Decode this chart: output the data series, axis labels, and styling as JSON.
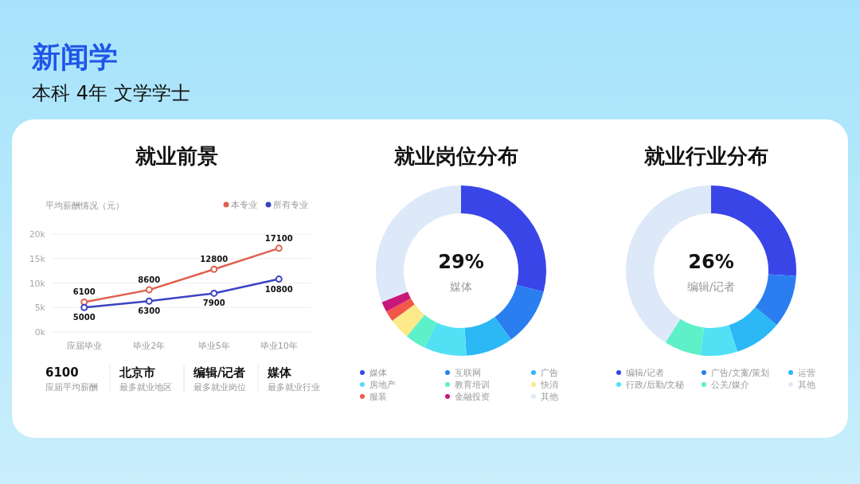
{
  "chart_data": [
    {
      "type": "other",
      "title": "新闻学",
      "subtitle": "本科 4年 文学学士"
    },
    {
      "type": "line",
      "title": "就业前景",
      "ylabel": "平均薪酬情况（元）",
      "categories": [
        "应届毕业",
        "毕业2年",
        "毕业5年",
        "毕业10年"
      ],
      "series": [
        {
          "name": "本专业",
          "color": "#e0604f",
          "values": [
            6100,
            8600,
            12800,
            17100
          ]
        },
        {
          "name": "所有专业",
          "color": "#3a44c4",
          "values": [
            5000,
            6300,
            7900,
            10800
          ]
        }
      ],
      "ylim": [
        0,
        20000
      ],
      "yticks": [
        {
          "value": 0,
          "label": "0k"
        },
        {
          "value": 5000,
          "label": "5k"
        },
        {
          "value": 10000,
          "label": "10k"
        },
        {
          "value": 15000,
          "label": "15k"
        },
        {
          "value": 20000,
          "label": "20k"
        }
      ],
      "grid": "y",
      "legend": "top right",
      "marker": "circle",
      "data_labels": true
    },
    {
      "type": "other",
      "annotations": [
        "6100",
        "应届平均薪酬",
        "北京市",
        "最多就业地区",
        "编辑/记者",
        "最多就业岗位",
        "媒体",
        "最多就业行业"
      ]
    },
    {
      "type": "donut",
      "title": "就业岗位分布",
      "categories": [
        "媒体",
        "互联网",
        "广告",
        "房地产",
        "教育培训",
        "快消",
        "服装",
        "金融投资",
        "其他"
      ],
      "values": [
        29,
        11,
        9,
        8,
        4,
        4,
        2,
        2,
        31
      ],
      "colors": [
        "#3a45e8",
        "#2a7ef0",
        "#2bb8f5",
        "#52e0f5",
        "#5ef0c8",
        "#fce98a",
        "#f2574a",
        "#c8177a",
        "#dde8f8"
      ],
      "legend": "bottom",
      "annotations": [
        "29%",
        "媒体"
      ]
    },
    {
      "type": "donut",
      "title": "就业行业分布",
      "categories": [
        "编辑/记者",
        "广告/文案/策划",
        "运营",
        "行政/后勤/文秘",
        "公关/媒介",
        "其他"
      ],
      "values": [
        26,
        10,
        9,
        7,
        7,
        41
      ],
      "colors": [
        "#3a45e8",
        "#2a7ef0",
        "#2bb8f5",
        "#52e0f5",
        "#5ef0c8",
        "#dde8f8"
      ],
      "legend": "bottom",
      "annotations": [
        "26%",
        "编辑/记者"
      ]
    }
  ]
}
